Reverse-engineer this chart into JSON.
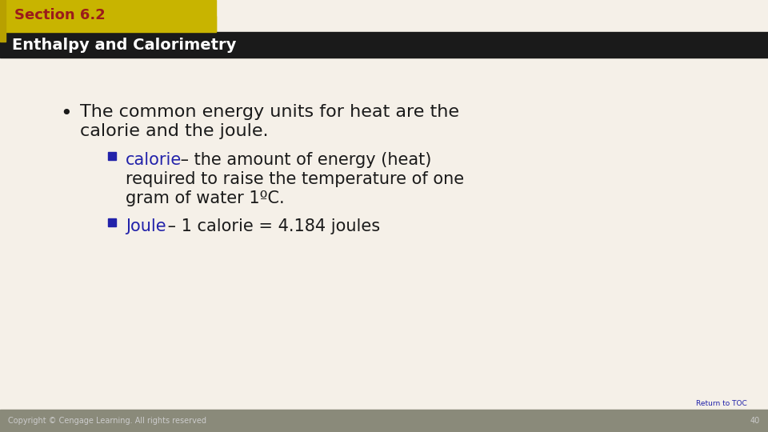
{
  "bg_color": "#f5f0e8",
  "header_tab_color": "#c8b400",
  "header_tab_text": "Section 6.2",
  "header_tab_text_color": "#9b1b1b",
  "header_bar_color": "#1a1a1a",
  "header_bar_text": "Enthalpy and Calorimetry",
  "header_bar_text_color": "#ffffff",
  "footer_bar_color": "#8a8a7a",
  "footer_copyright": "Copyright © Cengage Learning. All rights reserved",
  "footer_page": "40",
  "footer_link": "Return to TOC",
  "bullet_text_line1": "The common energy units for heat are the",
  "bullet_text_line2": "calorie and the joule.",
  "sub_bullet1_colored": "calorie",
  "sub_bullet1_rest": " – the amount of energy (heat)",
  "sub_bullet1_line2": "required to raise the temperature of one",
  "sub_bullet1_line3": "gram of water 1ºC.",
  "sub_bullet2_colored": "Joule",
  "sub_bullet2_rest": " – 1 calorie = 4.184 joules",
  "bullet_color": "#2222aa",
  "sub_bullet_square_color": "#2222aa",
  "text_color": "#1a1a1a",
  "link_color": "#2222aa"
}
